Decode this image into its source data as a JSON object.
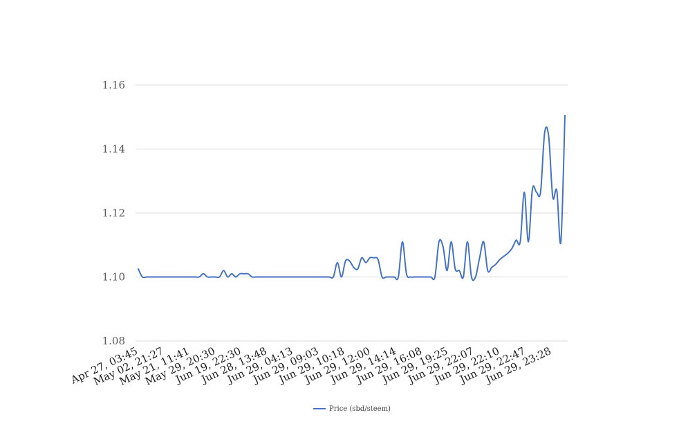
{
  "chart_data": {
    "type": "line",
    "title": "",
    "xlabel": "",
    "ylabel": "",
    "ylim": [
      1.08,
      1.16
    ],
    "yticks": [
      1.08,
      1.1,
      1.12,
      1.14,
      1.16
    ],
    "y_tick_labels": [
      "1.08",
      "1.10",
      "1.12",
      "1.14",
      "1.16"
    ],
    "x_tick_labels": [
      "Apr 27, 03:45",
      "May 02, 21:27",
      "May 21, 11:41",
      "May 29, 20:30",
      "Jun 19, 22:30",
      "Jun 28, 13:48",
      "Jun 29, 04:13",
      "Jun 29, 09:03",
      "Jun 29, 10:18",
      "Jun 29, 12:00",
      "Jun 29, 14:14",
      "Jun 29, 16:08",
      "Jun 29, 19:25",
      "Jun 29, 22:07",
      "Jun 29, 22:10",
      "Jun 29, 22:47",
      "Jun 29, 23:28"
    ],
    "grid": true,
    "legend_position": "bottom",
    "series": [
      {
        "name": "Price (sbd/steem)",
        "color": "#4472c4",
        "values": [
          1.1025,
          1.1,
          1.1,
          1.1,
          1.1,
          1.1,
          1.1,
          1.1,
          1.1,
          1.1,
          1.1,
          1.1,
          1.1,
          1.1,
          1.1,
          1.1,
          1.101,
          1.1,
          1.1,
          1.1,
          1.1,
          1.102,
          1.1,
          1.101,
          1.1,
          1.101,
          1.101,
          1.101,
          1.1,
          1.1,
          1.1,
          1.1,
          1.1,
          1.1,
          1.1,
          1.1,
          1.1,
          1.1,
          1.1,
          1.1,
          1.1,
          1.1,
          1.1,
          1.1,
          1.1,
          1.1,
          1.1,
          1.1,
          1.1,
          1.1045,
          1.1,
          1.105,
          1.105,
          1.103,
          1.1025,
          1.106,
          1.1045,
          1.106,
          1.106,
          1.1055,
          1.1,
          1.1,
          1.1,
          1.1,
          1.1,
          1.111,
          1.101,
          1.1,
          1.1,
          1.1,
          1.1,
          1.1,
          1.1,
          1.1,
          1.111,
          1.1095,
          1.102,
          1.111,
          1.1025,
          1.102,
          1.1,
          1.111,
          1.1,
          1.1,
          1.106,
          1.111,
          1.102,
          1.103,
          1.104,
          1.1055,
          1.1065,
          1.1075,
          1.109,
          1.1115,
          1.111,
          1.1265,
          1.111,
          1.1275,
          1.1265,
          1.1265,
          1.145,
          1.144,
          1.125,
          1.127,
          1.111,
          1.1505
        ]
      }
    ]
  }
}
